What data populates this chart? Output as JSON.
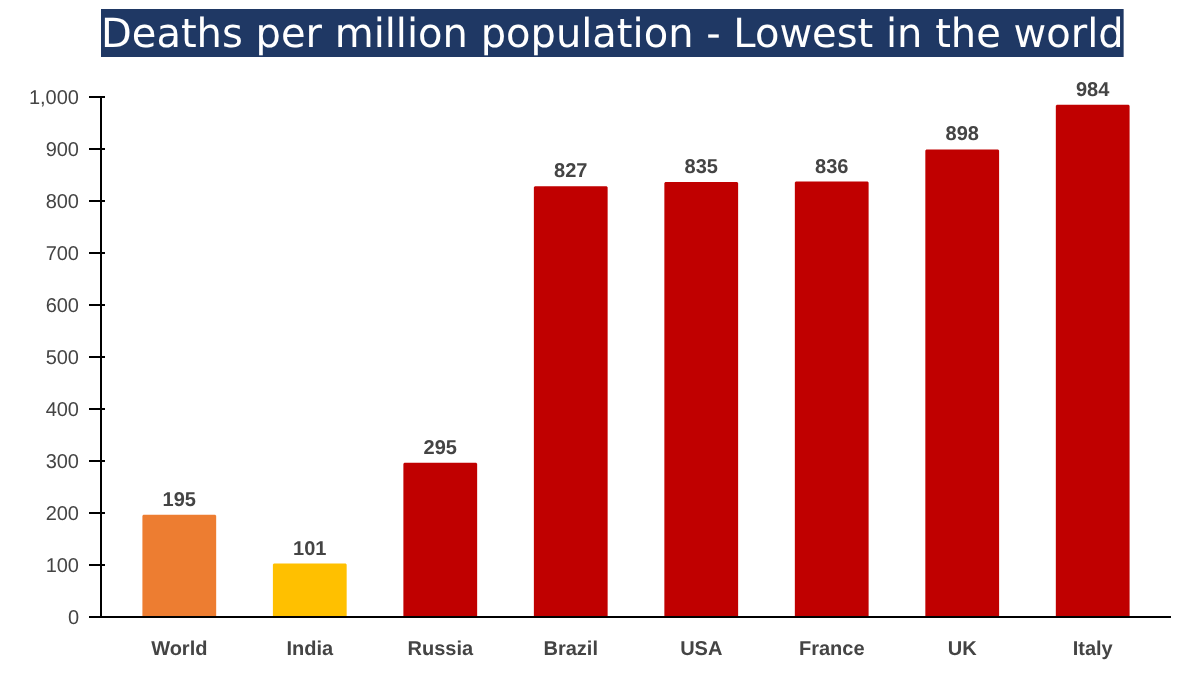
{
  "chart_data": {
    "type": "bar",
    "title": "Deaths per million population - Lowest in the world",
    "categories": [
      "World",
      "India",
      "Russia",
      "Brazil",
      "USA",
      "France",
      "UK",
      "Italy"
    ],
    "values": [
      195,
      101,
      295,
      827,
      835,
      836,
      898,
      984
    ],
    "colors": [
      "#ed7d31",
      "#ffc000",
      "#c00000",
      "#c00000",
      "#c00000",
      "#c00000",
      "#c00000",
      "#c00000"
    ],
    "ylim": [
      0,
      1000
    ],
    "yticks": [
      0,
      100,
      200,
      300,
      400,
      500,
      600,
      700,
      800,
      900,
      {
        "value": 1000,
        "label": "1,000"
      }
    ],
    "grid": false,
    "data_labels": true
  }
}
